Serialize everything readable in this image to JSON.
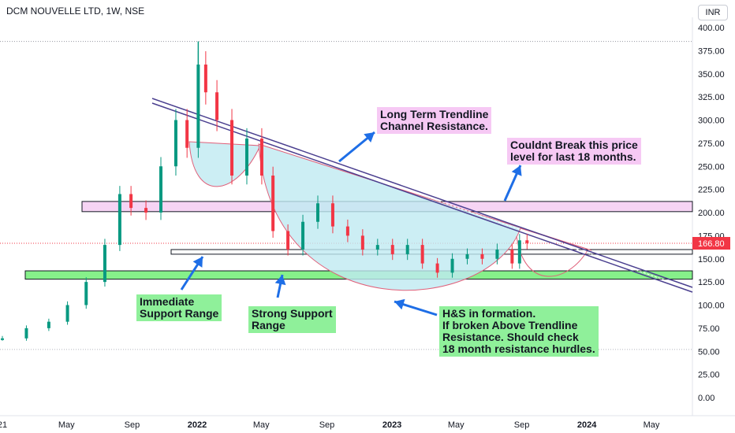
{
  "header": {
    "symbol_title": "DCM NOUVELLE LTD, 1W, NSE",
    "currency": "INR"
  },
  "colors": {
    "up": "#089981",
    "down": "#f23645",
    "trendline": "#4a3f8f",
    "cup_fill": "#bfeaf1",
    "resistance_band": "#f6d4f4",
    "support_band": "#86f08a",
    "note_green": "#8ff09a",
    "note_pink": "#f6c9f4",
    "arrow": "#1e6ee6"
  },
  "annotations": {
    "trendline": "Long Term Trendline\nChannel Resistance.",
    "resistance": "Couldnt Break this price\nlevel for last 18 months.",
    "immediate_support": "Immediate\nSupport Range",
    "strong_support": "Strong Support\nRange",
    "hs": "H&S in formation.\nIf broken Above Trendline\nResistance. Should check\n18 month resistance hurdles."
  },
  "chart_data": {
    "type": "candlestick",
    "title": "DCM NOUVELLE LTD, 1W, NSE",
    "y_ticks": [
      "400.00",
      "375.00",
      "350.00",
      "325.00",
      "300.00",
      "275.00",
      "250.00",
      "225.00",
      "200.00",
      "175.00",
      "150.00",
      "125.00",
      "100.00",
      "75.00",
      "50.00",
      "25.00",
      "0.00"
    ],
    "x_ticks": [
      {
        "label": "21",
        "date": "2021-01-01"
      },
      {
        "label": "May",
        "date": "2021-05-01"
      },
      {
        "label": "Sep",
        "date": "2021-09-01"
      },
      {
        "label": "2022",
        "date": "2022-01-01"
      },
      {
        "label": "May",
        "date": "2022-05-01"
      },
      {
        "label": "Sep",
        "date": "2022-09-01"
      },
      {
        "label": "2023",
        "date": "2023-01-01"
      },
      {
        "label": "May",
        "date": "2023-05-01"
      },
      {
        "label": "Sep",
        "date": "2023-09-01"
      },
      {
        "label": "2024",
        "date": "2024-01-01"
      },
      {
        "label": "May",
        "date": "2024-05-01"
      }
    ],
    "ylim": [
      0,
      400
    ],
    "last_price": "166.80",
    "highest_price": 385,
    "resistance_zone": [
      201,
      212
    ],
    "immediate_support_zone": [
      155,
      160
    ],
    "strong_support_zone": [
      128,
      137
    ],
    "weekly_close": [
      {
        "date": "2021-01-01",
        "close": 64
      },
      {
        "date": "2021-02-15",
        "close": 75
      },
      {
        "date": "2021-03-29",
        "close": 82
      },
      {
        "date": "2021-05-03",
        "close": 100
      },
      {
        "date": "2021-06-07",
        "close": 125
      },
      {
        "date": "2021-07-12",
        "close": 165
      },
      {
        "date": "2021-08-09",
        "close": 220
      },
      {
        "date": "2021-08-30",
        "close": 205
      },
      {
        "date": "2021-09-27",
        "close": 200
      },
      {
        "date": "2021-10-25",
        "close": 250
      },
      {
        "date": "2021-11-22",
        "close": 300
      },
      {
        "date": "2021-12-13",
        "close": 270
      },
      {
        "date": "2022-01-03",
        "close": 360
      },
      {
        "date": "2022-01-17",
        "close": 330
      },
      {
        "date": "2022-02-07",
        "close": 300
      },
      {
        "date": "2022-03-07",
        "close": 240
      },
      {
        "date": "2022-04-04",
        "close": 280
      },
      {
        "date": "2022-05-02",
        "close": 240
      },
      {
        "date": "2022-05-23",
        "close": 180
      },
      {
        "date": "2022-06-20",
        "close": 160
      },
      {
        "date": "2022-07-18",
        "close": 190
      },
      {
        "date": "2022-08-15",
        "close": 210
      },
      {
        "date": "2022-09-12",
        "close": 185
      },
      {
        "date": "2022-10-10",
        "close": 175
      },
      {
        "date": "2022-11-07",
        "close": 160
      },
      {
        "date": "2022-12-05",
        "close": 165
      },
      {
        "date": "2023-01-02",
        "close": 155
      },
      {
        "date": "2023-01-30",
        "close": 165
      },
      {
        "date": "2023-02-27",
        "close": 145
      },
      {
        "date": "2023-03-27",
        "close": 135
      },
      {
        "date": "2023-04-24",
        "close": 150
      },
      {
        "date": "2023-05-22",
        "close": 155
      },
      {
        "date": "2023-06-19",
        "close": 150
      },
      {
        "date": "2023-07-17",
        "close": 160
      },
      {
        "date": "2023-08-14",
        "close": 145
      },
      {
        "date": "2023-08-28",
        "close": 170
      },
      {
        "date": "2023-09-11",
        "close": 167
      }
    ]
  }
}
